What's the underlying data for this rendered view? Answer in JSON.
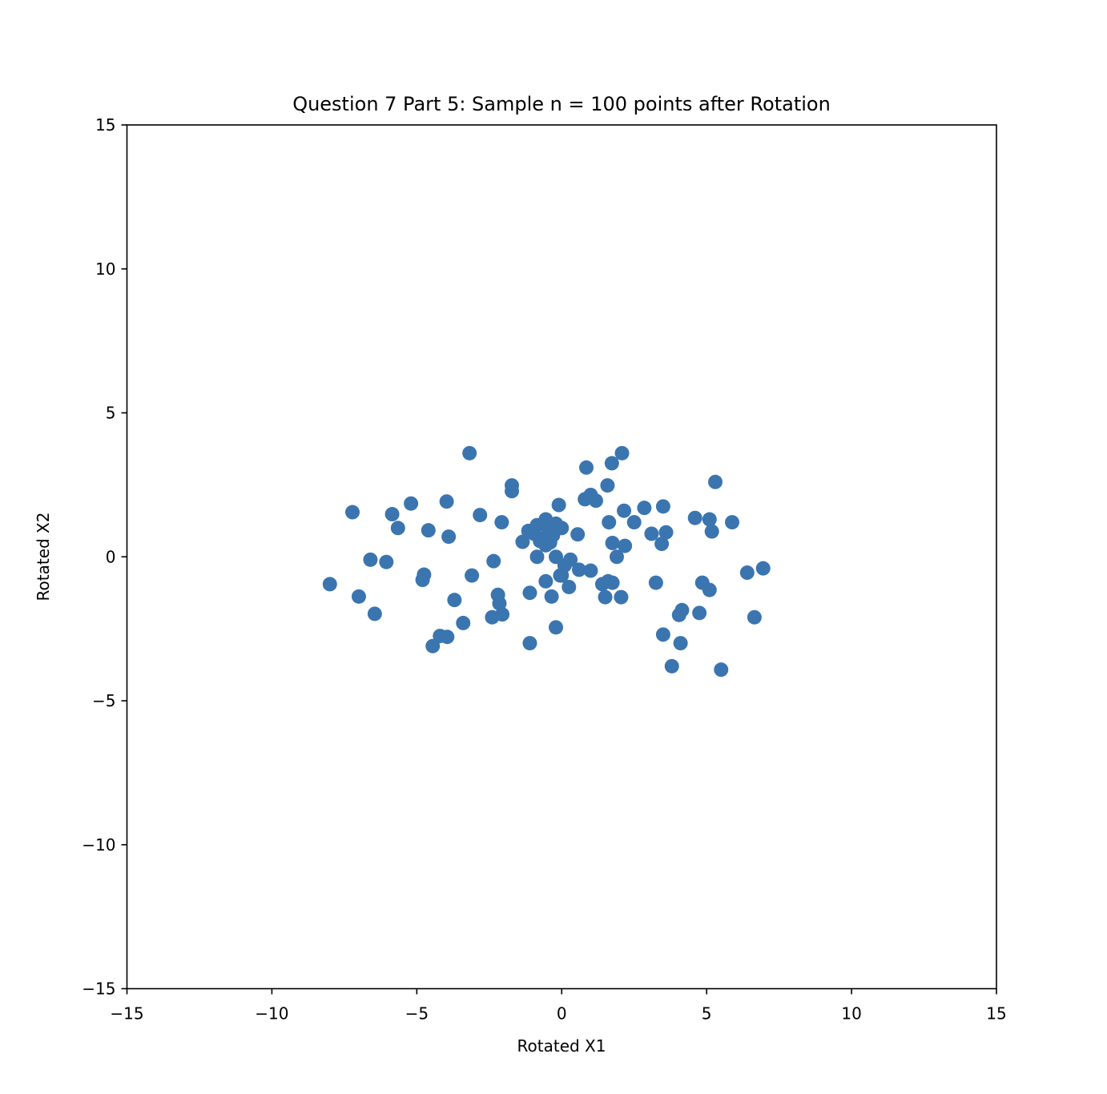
{
  "chart_data": {
    "type": "scatter",
    "title": "Question 7 Part 5: Sample n = 100 points after Rotation",
    "xlabel": "Rotated X1",
    "ylabel": "Rotated X2",
    "xlim": [
      -15,
      15
    ],
    "ylim": [
      -15,
      15
    ],
    "xticks": [
      -15,
      -10,
      -5,
      0,
      5,
      10,
      15
    ],
    "yticks": [
      -15,
      -10,
      -5,
      0,
      5,
      10,
      15
    ],
    "xtick_labels": [
      "−15",
      "−10",
      "−5",
      "0",
      "5",
      "10",
      "15"
    ],
    "ytick_labels": [
      "−15",
      "−10",
      "−5",
      "0",
      "5",
      "10",
      "15"
    ],
    "grid": false,
    "color": "#3b75af",
    "points": [
      [
        -3.18,
        3.6
      ],
      [
        2.08,
        3.6
      ],
      [
        0.85,
        3.1
      ],
      [
        1.73,
        3.25
      ],
      [
        -1.72,
        2.48
      ],
      [
        -1.72,
        2.28
      ],
      [
        1.58,
        2.48
      ],
      [
        5.3,
        2.6
      ],
      [
        0.8,
        2.0
      ],
      [
        1.0,
        2.15
      ],
      [
        1.18,
        1.95
      ],
      [
        -3.97,
        1.92
      ],
      [
        -5.2,
        1.85
      ],
      [
        -7.22,
        1.55
      ],
      [
        -5.85,
        1.48
      ],
      [
        -2.82,
        1.45
      ],
      [
        -0.1,
        1.8
      ],
      [
        2.15,
        1.6
      ],
      [
        2.85,
        1.7
      ],
      [
        3.5,
        1.75
      ],
      [
        -2.07,
        1.2
      ],
      [
        -5.65,
        1.0
      ],
      [
        -4.6,
        0.92
      ],
      [
        -3.9,
        0.7
      ],
      [
        1.63,
        1.2
      ],
      [
        2.5,
        1.2
      ],
      [
        4.6,
        1.35
      ],
      [
        5.1,
        1.3
      ],
      [
        5.88,
        1.2
      ],
      [
        -0.55,
        1.3
      ],
      [
        -0.85,
        1.1
      ],
      [
        -0.2,
        1.15
      ],
      [
        -1.15,
        0.9
      ],
      [
        -0.95,
        0.8
      ],
      [
        0.0,
        1.0
      ],
      [
        3.1,
        0.8
      ],
      [
        3.6,
        0.85
      ],
      [
        5.18,
        0.88
      ],
      [
        0.55,
        0.78
      ],
      [
        -0.45,
        0.9
      ],
      [
        -0.3,
        0.75
      ],
      [
        -0.6,
        0.65
      ],
      [
        -0.75,
        0.55
      ],
      [
        -0.4,
        0.5
      ],
      [
        -1.35,
        0.52
      ],
      [
        -0.55,
        0.4
      ],
      [
        1.75,
        0.48
      ],
      [
        2.18,
        0.38
      ],
      [
        3.45,
        0.45
      ],
      [
        -0.2,
        0.0
      ],
      [
        -0.85,
        0.0
      ],
      [
        1.9,
        0.0
      ],
      [
        0.3,
        -0.1
      ],
      [
        -6.6,
        -0.1
      ],
      [
        -6.05,
        -0.18
      ],
      [
        -2.35,
        -0.15
      ],
      [
        0.1,
        -0.3
      ],
      [
        0.6,
        -0.45
      ],
      [
        1.0,
        -0.48
      ],
      [
        6.95,
        -0.4
      ],
      [
        6.4,
        -0.55
      ],
      [
        -4.75,
        -0.62
      ],
      [
        -3.1,
        -0.65
      ],
      [
        0.0,
        -0.65
      ],
      [
        -4.8,
        -0.8
      ],
      [
        -0.55,
        -0.85
      ],
      [
        3.25,
        -0.9
      ],
      [
        4.85,
        -0.9
      ],
      [
        -8.0,
        -0.95
      ],
      [
        1.4,
        -0.95
      ],
      [
        1.6,
        -0.85
      ],
      [
        1.75,
        -0.9
      ],
      [
        0.25,
        -1.05
      ],
      [
        5.1,
        -1.15
      ],
      [
        -1.1,
        -1.25
      ],
      [
        -2.2,
        -1.32
      ],
      [
        -7.0,
        -1.38
      ],
      [
        -0.35,
        -1.38
      ],
      [
        1.5,
        -1.4
      ],
      [
        2.05,
        -1.4
      ],
      [
        -3.7,
        -1.5
      ],
      [
        -2.15,
        -1.62
      ],
      [
        -6.45,
        -1.98
      ],
      [
        -2.05,
        -2.0
      ],
      [
        -2.4,
        -2.1
      ],
      [
        4.15,
        -1.85
      ],
      [
        4.05,
        -2.02
      ],
      [
        4.75,
        -1.95
      ],
      [
        6.65,
        -2.1
      ],
      [
        -3.4,
        -2.3
      ],
      [
        -0.2,
        -2.45
      ],
      [
        -4.2,
        -2.75
      ],
      [
        -3.95,
        -2.78
      ],
      [
        3.5,
        -2.7
      ],
      [
        -4.45,
        -3.1
      ],
      [
        -1.1,
        -3.0
      ],
      [
        4.1,
        -3.0
      ],
      [
        3.8,
        -3.8
      ],
      [
        5.5,
        -3.92
      ],
      [
        -0.05,
        -0.65
      ]
    ]
  }
}
